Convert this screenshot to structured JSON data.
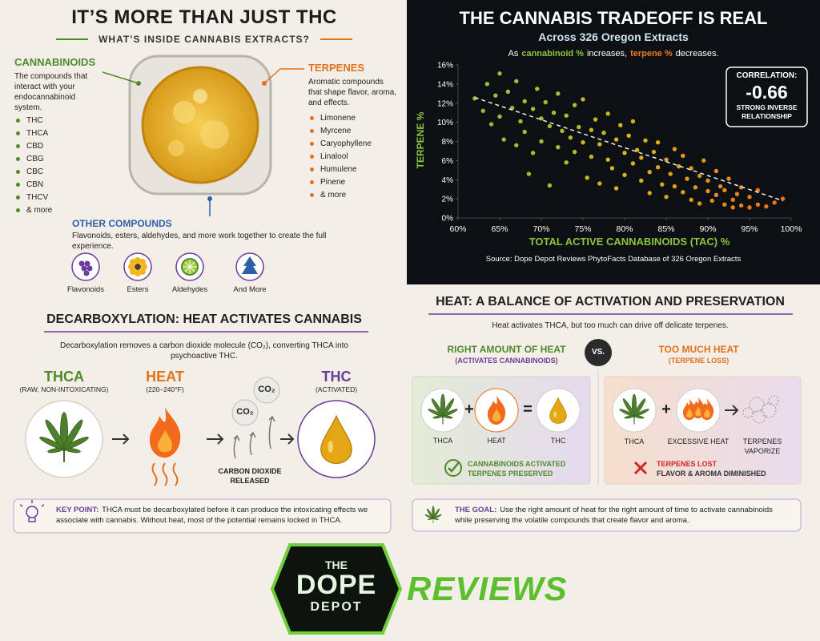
{
  "left_top": {
    "title": "IT’S MORE THAN JUST THC",
    "subtitle": "WHAT’S INSIDE CANNABIS EXTRACTS?",
    "cannabinoids": {
      "heading": "CANNABINOIDS",
      "description": "The compounds that interact with your endocannabinoid system.",
      "items": [
        "THC",
        "THCA",
        "CBD",
        "CBG",
        "CBC",
        "CBN",
        "THCV",
        "& more"
      ]
    },
    "terpenes": {
      "heading": "TERPENES",
      "description": "Aromatic compounds that shape flavor, aroma, and effects.",
      "items": [
        "Limonene",
        "Myrcene",
        "Caryophyllene",
        "Linalool",
        "Humulene",
        "Pinene",
        "& more"
      ]
    },
    "other_compounds": {
      "heading": "OTHER COMPOUNDS",
      "description": "Flavonoids, esters, aldehydes, and more work together to create the full experience.",
      "icons": [
        "Flavonoids",
        "Esters",
        "Aldehydes",
        "And More"
      ]
    }
  },
  "chart_data": {
    "type": "scatter",
    "title": "THE CANNABIS TRADEOFF IS REAL",
    "subtitle": "Across 326 Oregon Extracts",
    "note": [
      "As",
      "cannabinoid %",
      "increases,",
      "terpene %",
      "decreases."
    ],
    "xlabel": "TOTAL ACTIVE CANNABINOIDS (TAC) %",
    "ylabel": "TERPENE %",
    "source": "Source: Dope Depot Reviews PhytoFacts Database of 326 Oregon Extracts",
    "correlation": {
      "label": "CORRELATION:",
      "value": -0.66,
      "description": "STRONG INVERSE RELATIONSHIP"
    },
    "xlim": [
      60,
      100
    ],
    "ylim": [
      0,
      16
    ],
    "xticks": [
      {
        "value": 60,
        "label": "60%"
      },
      {
        "value": 65,
        "label": "65%"
      },
      {
        "value": 70,
        "label": "70%"
      },
      {
        "value": 75,
        "label": "75%"
      },
      {
        "value": 80,
        "label": "80%"
      },
      {
        "value": 85,
        "label": "85%"
      },
      {
        "value": 90,
        "label": "90%"
      },
      {
        "value": 95,
        "label": "95%"
      },
      {
        "value": 100,
        "label": "100%"
      }
    ],
    "yticks": [
      {
        "value": 0,
        "label": "0%"
      },
      {
        "value": 2,
        "label": "2%"
      },
      {
        "value": 4,
        "label": "4%"
      },
      {
        "value": 6,
        "label": "6%"
      },
      {
        "value": 8,
        "label": "8%"
      },
      {
        "value": 10,
        "label": "10%"
      },
      {
        "value": 12,
        "label": "12%"
      },
      {
        "value": 14,
        "label": "14%"
      },
      {
        "value": 16,
        "label": "16%"
      }
    ],
    "colors": [
      "#7fc241",
      "#d8b51c",
      "#f06a14"
    ],
    "grid": false,
    "x": [
      62,
      63,
      63.5,
      64,
      64.5,
      65,
      65,
      65.5,
      66,
      66.5,
      67,
      67,
      67.5,
      68,
      68,
      68.5,
      69,
      69,
      69.5,
      70,
      70,
      70.5,
      71,
      71,
      71.5,
      72,
      72,
      72.5,
      73,
      73,
      73.5,
      74,
      74,
      74.5,
      75,
      75,
      75.5,
      76,
      76,
      76.5,
      77,
      77,
      77.5,
      78,
      78,
      78.5,
      79,
      79,
      79.5,
      80,
      80,
      80.5,
      81,
      81,
      81.5,
      82,
      82,
      82.5,
      83,
      83,
      83.5,
      84,
      84,
      84.5,
      85,
      85,
      85.5,
      86,
      86,
      86.5,
      87,
      87,
      87.5,
      88,
      88,
      88.5,
      89,
      89,
      89.5,
      90,
      90,
      90.5,
      91,
      91,
      91.5,
      92,
      92,
      92.5,
      93,
      93,
      93.5,
      94,
      94,
      95,
      95,
      96,
      96,
      97,
      98,
      99
    ],
    "values": [
      12.5,
      11.2,
      14,
      9.8,
      12.8,
      15.1,
      10.6,
      8.2,
      13.2,
      11.5,
      7.6,
      14.3,
      10.1,
      12.2,
      9,
      4.6,
      11.4,
      6.8,
      13.5,
      10.4,
      8,
      12.1,
      9.6,
      3.4,
      11,
      7.4,
      13,
      9.1,
      10.7,
      5.8,
      8.4,
      11.8,
      6.9,
      9.5,
      7.9,
      12.4,
      4.2,
      9.2,
      6.4,
      10.3,
      7.7,
      3.6,
      8.9,
      6.1,
      10.9,
      5.2,
      8.2,
      3.1,
      9.7,
      6.8,
      4.5,
      8.6,
      5.7,
      10.1,
      7.1,
      3.9,
      6.3,
      8.1,
      4.8,
      2.6,
      6.9,
      5.3,
      7.9,
      3.5,
      6.1,
      2.2,
      4.6,
      7.2,
      3.3,
      5.4,
      2.7,
      6.5,
      4.1,
      1.9,
      5.2,
      3.2,
      4.4,
      1.5,
      6,
      2.8,
      3.9,
      1.8,
      4.9,
      2.4,
      3.3,
      1.4,
      2.9,
      4.1,
      1.9,
      1.1,
      2.5,
      1.3,
      3.2,
      1.1,
      2.2,
      1.4,
      2.9,
      1.2,
      1.6,
      2
    ],
    "trendline": {
      "x": [
        62,
        99
      ],
      "values": [
        12.6,
        1.8
      ]
    }
  },
  "decarb": {
    "title": "DECARBOXYLATION: HEAT ACTIVATES CANNABIS",
    "description": "Decarboxylation removes a carbon dioxide molecule (CO₂), converting THCA into psychoactive THC.",
    "steps": [
      {
        "label": "THCA",
        "sub": "(RAW, NON-INTOXICATING)"
      },
      {
        "label": "HEAT",
        "sub": "(220–240°F)"
      },
      {
        "label": "THC",
        "sub": "(ACTIVATED)"
      }
    ],
    "co2": [
      "CO₂",
      "CO₂"
    ],
    "co2_caption": "CARBON DIOXIDE RELEASED",
    "key_point": {
      "label": "KEY POINT:",
      "text": "THCA must be decarboxylated before it can produce the intoxicating effects we associate with cannabis. Without heat, most of the potential remains locked in THCA."
    }
  },
  "heat": {
    "title": "HEAT: A BALANCE OF ACTIVATION AND PRESERVATION",
    "description": "Heat activates THCA, but too much can drive off delicate terpenes.",
    "vs": "VS.",
    "right": {
      "heading": "RIGHT AMOUNT OF HEAT",
      "sub": "(ACTIVATES CANNABINOIDS)",
      "items": [
        "THCA",
        "HEAT",
        "THC"
      ],
      "operators": [
        "+",
        "="
      ],
      "result": [
        "CANNABINOIDS ACTIVATED",
        "TERPENES PRESERVED"
      ]
    },
    "too_much": {
      "heading": "TOO MUCH HEAT",
      "sub": "(TERPENE LOSS)",
      "items": [
        "THCA",
        "EXCESSIVE HEAT",
        "TERPENES VAPORIZE"
      ],
      "operators": [
        "+"
      ],
      "result": [
        "TERPENES LOST",
        "FLAVOR & AROMA DIMINISHED"
      ]
    },
    "goal": {
      "label": "THE GOAL:",
      "text": "Use the right amount of heat for the right amount of time to activate cannabinoids while preserving the volatile compounds that create flavor and aroma."
    }
  },
  "logo": {
    "lines": [
      "THE",
      "DOPE",
      "DEPOT"
    ],
    "reviews": "REVIEWS"
  }
}
